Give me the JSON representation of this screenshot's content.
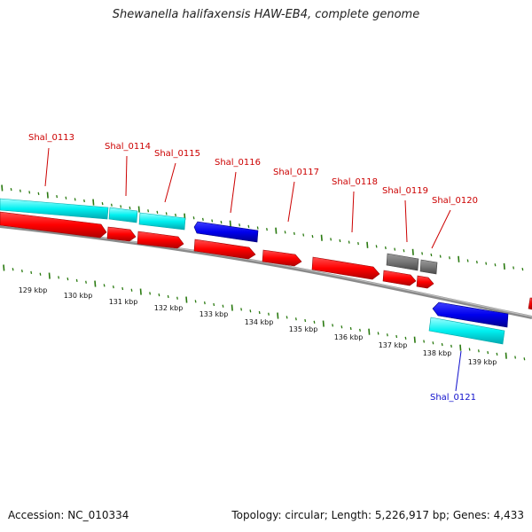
{
  "title": "Shewanella halifaxensis HAW-EB4, complete genome",
  "accession": "Accession: NC_010334",
  "summary": "Topology: circular; Length: 5,226,917 bp; Genes: 4,433",
  "ruler_labels": [
    "129 kbp",
    "130 kbp",
    "131 kbp",
    "132 kbp",
    "133 kbp",
    "134 kbp",
    "135 kbp",
    "136 kbp",
    "137 kbp",
    "138 kbp",
    "139 kbp"
  ],
  "gene_labels": [
    "Shal_0113",
    "Shal_0114",
    "Shal_0115",
    "Shal_0116",
    "Shal_0117",
    "Shal_0118",
    "Shal_0119",
    "Shal_0120",
    "Shal_0121"
  ],
  "colors": {
    "cds_forward": "#ff0000",
    "cds_reverse": "#0000ff",
    "rna": "#00ffff",
    "pseudo": "#808080",
    "backbone": "#777777",
    "tick": "#2a7a10",
    "label_forward": "#cc0000",
    "label_reverse": "#1010cc"
  }
}
